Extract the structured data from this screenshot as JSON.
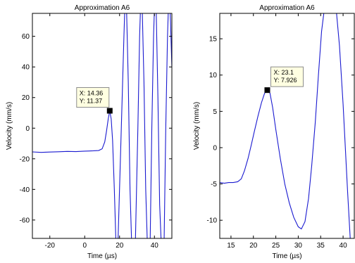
{
  "chart_data": [
    {
      "type": "line",
      "title": "Approximation A6",
      "xlabel": "Time (µs)",
      "ylabel": "Velocity (mm/s)",
      "xlim": [
        -30,
        50
      ],
      "ylim": [
        -72,
        75
      ],
      "xticks": [
        -20,
        0,
        20,
        40
      ],
      "yticks": [
        -60,
        -40,
        -20,
        0,
        20,
        40,
        60
      ],
      "grid": false,
      "series": [
        {
          "color": "#1a1ad0",
          "points": [
            [
              -30,
              -15.5
            ],
            [
              -25,
              -15.8
            ],
            [
              -20,
              -15.6
            ],
            [
              -15,
              -15.4
            ],
            [
              -10,
              -15.2
            ],
            [
              -5,
              -15.3
            ],
            [
              0,
              -15.0
            ],
            [
              5,
              -14.8
            ],
            [
              8,
              -14.6
            ],
            [
              10,
              -13.5
            ],
            [
              11.5,
              -9
            ],
            [
              12.5,
              -2
            ],
            [
              13.5,
              6
            ],
            [
              14.36,
              11.37
            ],
            [
              15.2,
              6
            ],
            [
              16,
              -8
            ],
            [
              17,
              -40
            ],
            [
              18,
              -78
            ],
            [
              19,
              -78
            ],
            [
              21,
              0
            ],
            [
              22.5,
              60
            ],
            [
              23,
              78
            ],
            [
              24,
              78
            ],
            [
              25,
              30
            ],
            [
              26,
              -40
            ],
            [
              27,
              -78
            ],
            [
              29,
              -78
            ],
            [
              30.5,
              0
            ],
            [
              31.5,
              60
            ],
            [
              32,
              78
            ],
            [
              33,
              78
            ],
            [
              34,
              30
            ],
            [
              35,
              -40
            ],
            [
              36,
              -78
            ],
            [
              37.5,
              -78
            ],
            [
              38.5,
              0
            ],
            [
              39.5,
              60
            ],
            [
              40,
              78
            ],
            [
              41,
              78
            ],
            [
              42,
              20
            ],
            [
              43,
              -50
            ],
            [
              44,
              -78
            ],
            [
              45.5,
              -78
            ],
            [
              46.5,
              0
            ],
            [
              47.5,
              60
            ],
            [
              48,
              78
            ],
            [
              49,
              78
            ],
            [
              50,
              40
            ]
          ]
        }
      ],
      "datatip": {
        "x_label": "X: 14.36",
        "y_label": "Y: 11.37",
        "x": 14.36,
        "y": 11.37
      }
    },
    {
      "type": "line",
      "title": "Approximation A6",
      "xlabel": "Time (µs)",
      "ylabel": "Velocity (mm/s)",
      "xlim": [
        12.5,
        42.5
      ],
      "ylim": [
        -12.5,
        18.5
      ],
      "xticks": [
        15,
        20,
        25,
        30,
        35,
        40
      ],
      "yticks": [
        -10,
        -5,
        0,
        5,
        10,
        15
      ],
      "grid": false,
      "series": [
        {
          "color": "#1a1ad0",
          "points": [
            [
              12.5,
              -4.8
            ],
            [
              13.5,
              -4.9
            ],
            [
              14.5,
              -4.8
            ],
            [
              15.5,
              -4.8
            ],
            [
              16.5,
              -4.7
            ],
            [
              17.3,
              -4.3
            ],
            [
              18,
              -3.2
            ],
            [
              18.8,
              -1.5
            ],
            [
              19.5,
              0.3
            ],
            [
              20.2,
              2.2
            ],
            [
              21,
              4.3
            ],
            [
              21.8,
              6.2
            ],
            [
              22.5,
              7.5
            ],
            [
              23.1,
              7.926
            ],
            [
              23.7,
              7.5
            ],
            [
              24.3,
              5.5
            ],
            [
              25,
              2.5
            ],
            [
              26,
              -1.5
            ],
            [
              27,
              -5
            ],
            [
              28,
              -7.6
            ],
            [
              29,
              -9.6
            ],
            [
              30,
              -10.9
            ],
            [
              30.7,
              -11.2
            ],
            [
              31.5,
              -10.2
            ],
            [
              32.3,
              -7
            ],
            [
              33,
              -2.5
            ],
            [
              33.8,
              3.5
            ],
            [
              34.5,
              10
            ],
            [
              35.2,
              16
            ],
            [
              35.7,
              18.5
            ],
            [
              37,
              18.8
            ],
            [
              38.5,
              18.8
            ],
            [
              39.2,
              14
            ],
            [
              40,
              6
            ],
            [
              40.5,
              0
            ],
            [
              41,
              -6
            ],
            [
              41.6,
              -12.6
            ]
          ]
        }
      ],
      "datatip": {
        "x_label": "X: 23.1",
        "y_label": "Y: 7.926",
        "x": 23.1,
        "y": 7.926
      }
    }
  ]
}
